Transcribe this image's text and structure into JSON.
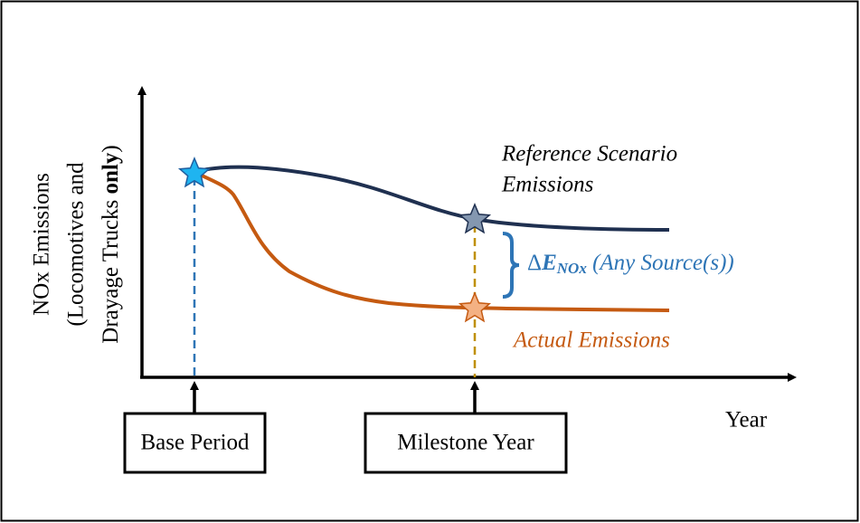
{
  "y_axis_label": {
    "line_1": "NOx Emissions",
    "line_2": "(Locomotives and",
    "line_3": {
      "text": "Drayage Trucks ",
      "emphasis": "only",
      "close": ")"
    }
  },
  "x_axis_label": "Year",
  "reference_label": [
    "Reference Scenario",
    "Emissions"
  ],
  "actual_label": "Actual Emissions",
  "delta_label": {
    "symbol": "Δ",
    "variable": "E",
    "subscript": "NOx",
    "note": " (Any Source(s))"
  },
  "boxes": [
    "Base Period",
    "Milestone Year"
  ]
}
